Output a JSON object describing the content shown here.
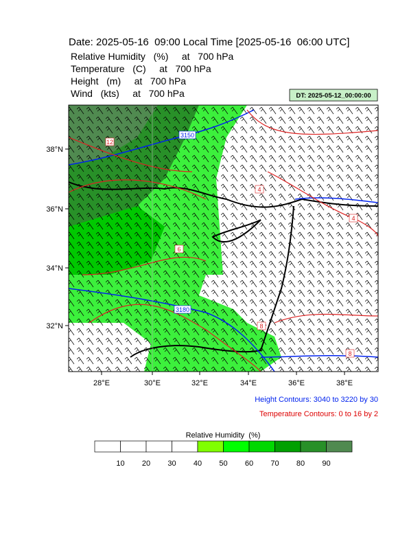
{
  "header": {
    "title": "Date: 2025-05-16  09:00 Local Time [2025-05-16  06:00 UTC]",
    "lines": [
      "Relative Humidity   (%)     at   700 hPa",
      "Temperature   (C)     at   700 hPa",
      "Height   (m)     at   700 hPa",
      "Wind   (kts)     at   700 hPa"
    ],
    "dt_label": "DT: 2025-05-12_00:00:00"
  },
  "map": {
    "lat_labels": [
      "38°N",
      "36°N",
      "34°N",
      "32°N"
    ],
    "lon_labels": [
      "28°E",
      "30°E",
      "32°E",
      "34°E",
      "36°E",
      "38°E"
    ],
    "height_contour_labels": [
      "3150",
      "3180"
    ],
    "temperature_contour_labels": [
      "12",
      "6",
      "4",
      "4",
      "8",
      "8"
    ]
  },
  "notes": {
    "height": "Height Contours: 3040 to 3220 by 30",
    "temperature": "Temperature Contours: 0 to 16 by 2"
  },
  "colorbar": {
    "title": "Relative Humidity  (%)",
    "labels": [
      "10",
      "20",
      "30",
      "40",
      "50",
      "60",
      "70",
      "80",
      "90"
    ],
    "colors": [
      "#ffffff",
      "#ffffff",
      "#ffffff",
      "#ffffff",
      "#80ff00",
      "#00ff00",
      "#00d800",
      "#00a000",
      "#289028",
      "#508a50"
    ]
  }
}
